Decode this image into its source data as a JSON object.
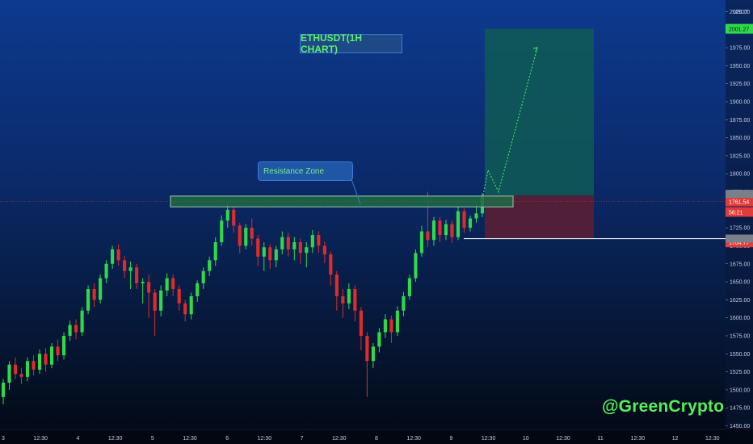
{
  "chart_data": {
    "type": "candlestick",
    "title": "ETHUSDT(1H CHART)",
    "symbol": "ETHUSDT",
    "timeframe": "1H",
    "currency_label": "USDT",
    "yticks": [
      1450,
      1475,
      1500,
      1525,
      1550,
      1575,
      1600,
      1625,
      1650,
      1675,
      1700,
      1725,
      1750,
      1775,
      1800,
      1825,
      1850,
      1875,
      1900,
      1925,
      1950,
      1975,
      2000,
      2025
    ],
    "ylim": [
      1445,
      2030
    ],
    "x_ticks": [
      "3",
      "12:30",
      "4",
      "12:30",
      "5",
      "12:30",
      "6",
      "12:30",
      "7",
      "12:30",
      "8",
      "12:30",
      "9",
      "12:30",
      "10",
      "12:30",
      "11",
      "12:30",
      "12",
      "12:30"
    ],
    "price_labels": [
      {
        "text": "2001.27",
        "value": 2001.27,
        "color": "#2fd94a"
      },
      {
        "text": "1761.54",
        "value": 1761.54,
        "color": "#e23b3b"
      },
      {
        "text": "56:21",
        "value": 1753,
        "color": "#e23b3b"
      },
      {
        "text": "1704.77",
        "value": 1704.77,
        "color": "#e23b3b"
      }
    ],
    "annotations": {
      "resistance_zone": {
        "label": "Resistance Zone",
        "low": 1754,
        "high": 1769
      },
      "long_position": {
        "entry": 1770,
        "target": 2001.27,
        "stop": 1710
      },
      "support_line": 1710,
      "projection_path": [
        1770,
        1805,
        1775,
        1975
      ]
    },
    "candles": [
      [
        1490,
        1510,
        1480,
        1515
      ],
      [
        1510,
        1535,
        1500,
        1540
      ],
      [
        1535,
        1522,
        1515,
        1545
      ],
      [
        1522,
        1518,
        1508,
        1530
      ],
      [
        1518,
        1540,
        1512,
        1545
      ],
      [
        1540,
        1528,
        1520,
        1548
      ],
      [
        1528,
        1550,
        1522,
        1556
      ],
      [
        1550,
        1535,
        1525,
        1558
      ],
      [
        1535,
        1560,
        1530,
        1565
      ],
      [
        1560,
        1548,
        1540,
        1570
      ],
      [
        1548,
        1575,
        1542,
        1580
      ],
      [
        1575,
        1590,
        1568,
        1596
      ],
      [
        1590,
        1580,
        1570,
        1598
      ],
      [
        1580,
        1610,
        1575,
        1615
      ],
      [
        1610,
        1640,
        1605,
        1645
      ],
      [
        1640,
        1625,
        1615,
        1648
      ],
      [
        1625,
        1655,
        1620,
        1660
      ],
      [
        1655,
        1675,
        1648,
        1680
      ],
      [
        1675,
        1695,
        1668,
        1700
      ],
      [
        1695,
        1680,
        1672,
        1702
      ],
      [
        1680,
        1665,
        1655,
        1686
      ],
      [
        1665,
        1670,
        1640,
        1678
      ],
      [
        1670,
        1648,
        1640,
        1675
      ],
      [
        1648,
        1650,
        1620,
        1655
      ],
      [
        1650,
        1635,
        1600,
        1660
      ],
      [
        1635,
        1610,
        1575,
        1640
      ],
      [
        1610,
        1638,
        1602,
        1645
      ],
      [
        1638,
        1655,
        1630,
        1662
      ],
      [
        1655,
        1640,
        1630,
        1660
      ],
      [
        1640,
        1620,
        1610,
        1645
      ],
      [
        1620,
        1605,
        1595,
        1625
      ],
      [
        1605,
        1630,
        1598,
        1635
      ],
      [
        1630,
        1648,
        1622,
        1652
      ],
      [
        1648,
        1665,
        1640,
        1670
      ],
      [
        1665,
        1680,
        1658,
        1685
      ],
      [
        1680,
        1705,
        1672,
        1712
      ],
      [
        1705,
        1735,
        1700,
        1742
      ],
      [
        1735,
        1750,
        1725,
        1758
      ],
      [
        1750,
        1728,
        1718,
        1755
      ],
      [
        1728,
        1700,
        1690,
        1732
      ],
      [
        1700,
        1725,
        1695,
        1730
      ],
      [
        1725,
        1710,
        1700,
        1738
      ],
      [
        1710,
        1685,
        1672,
        1715
      ],
      [
        1685,
        1698,
        1665,
        1705
      ],
      [
        1698,
        1680,
        1668,
        1702
      ],
      [
        1680,
        1695,
        1670,
        1700
      ],
      [
        1695,
        1712,
        1688,
        1720
      ],
      [
        1712,
        1695,
        1685,
        1718
      ],
      [
        1695,
        1705,
        1680,
        1712
      ],
      [
        1705,
        1690,
        1675,
        1710
      ],
      [
        1690,
        1698,
        1670,
        1705
      ],
      [
        1698,
        1715,
        1690,
        1722
      ],
      [
        1715,
        1700,
        1690,
        1720
      ],
      [
        1700,
        1688,
        1676,
        1706
      ],
      [
        1688,
        1660,
        1645,
        1692
      ],
      [
        1660,
        1630,
        1610,
        1665
      ],
      [
        1630,
        1620,
        1600,
        1640
      ],
      [
        1620,
        1640,
        1612,
        1648
      ],
      [
        1640,
        1610,
        1595,
        1645
      ],
      [
        1610,
        1575,
        1555,
        1615
      ],
      [
        1575,
        1540,
        1490,
        1580
      ],
      [
        1540,
        1560,
        1530,
        1565
      ],
      [
        1560,
        1580,
        1552,
        1586
      ],
      [
        1580,
        1598,
        1572,
        1605
      ],
      [
        1598,
        1580,
        1565,
        1603
      ],
      [
        1580,
        1610,
        1575,
        1616
      ],
      [
        1610,
        1630,
        1602,
        1636
      ],
      [
        1630,
        1655,
        1625,
        1660
      ],
      [
        1655,
        1690,
        1650,
        1695
      ],
      [
        1690,
        1720,
        1685,
        1728
      ],
      [
        1720,
        1708,
        1698,
        1775
      ],
      [
        1708,
        1735,
        1700,
        1740
      ],
      [
        1735,
        1715,
        1705,
        1740
      ],
      [
        1715,
        1730,
        1708,
        1736
      ],
      [
        1730,
        1712,
        1704,
        1735
      ],
      [
        1712,
        1748,
        1708,
        1755
      ],
      [
        1748,
        1725,
        1718,
        1752
      ],
      [
        1725,
        1738,
        1720,
        1742
      ],
      [
        1738,
        1745,
        1732,
        1758
      ],
      [
        1745,
        1768,
        1740,
        1773
      ]
    ]
  },
  "watermark": "@GreenCrypto",
  "colors": {
    "up": "#2fd94a",
    "down": "#e02b2b",
    "resistance_fill": "#1b6b43",
    "target_zone": "#0f5a55",
    "stop_zone": "#5a1f35",
    "title_box": "#1d4a86",
    "title_text": "#5cf06a",
    "watermark": "#55f05a"
  }
}
